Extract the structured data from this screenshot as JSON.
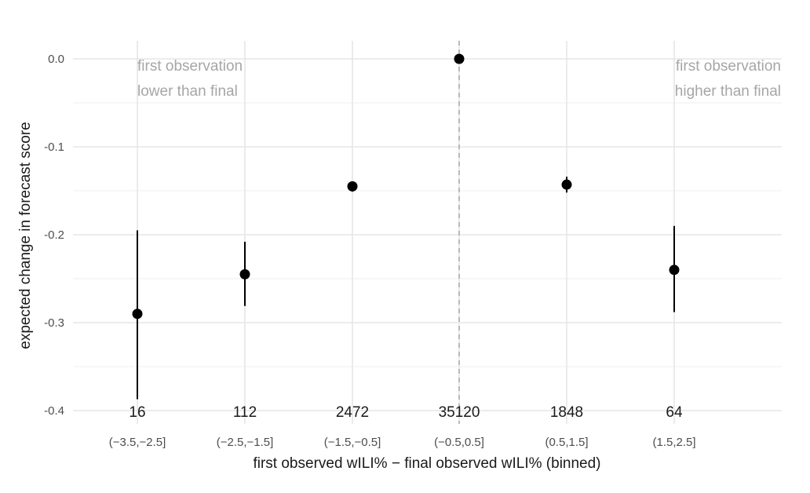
{
  "chart_data": {
    "type": "scatter",
    "subtype": "point-range",
    "xlabel": "first observed wILI% − final observed wILI% (binned)",
    "ylabel": "expected change in forecast score",
    "categories": [
      "(−3.5,−2.5]",
      "(−2.5,−1.5]",
      "(−1.5,−0.5]",
      "(−0.5,0.5]",
      "(0.5,1.5]",
      "(1.5,2.5]"
    ],
    "values": [
      -0.29,
      -0.245,
      -0.145,
      0.0,
      -0.143,
      -0.24
    ],
    "lower": [
      -0.387,
      -0.281,
      -0.151,
      0.0,
      -0.152,
      -0.288
    ],
    "upper": [
      -0.195,
      -0.208,
      -0.14,
      0.0,
      -0.134,
      -0.19
    ],
    "counts": [
      "16",
      "112",
      "2472",
      "35120",
      "1848",
      "64"
    ],
    "ylim": [
      -0.4,
      0.0
    ],
    "yticks": [
      "0.0",
      "-0.1",
      "-0.2",
      "-0.3",
      "-0.4"
    ],
    "reference_line": {
      "category": "(−0.5,0.5]",
      "style": "dashed"
    },
    "annotations": {
      "left": [
        "first observation",
        "lower than final"
      ],
      "right": [
        "first observation",
        "higher than final"
      ]
    },
    "grid": true,
    "legend": "none",
    "colors": {
      "point": "#000000",
      "grid": "#e6e6e6",
      "annotation": "#a6a6a6",
      "refline": "#b3b3b3"
    }
  }
}
